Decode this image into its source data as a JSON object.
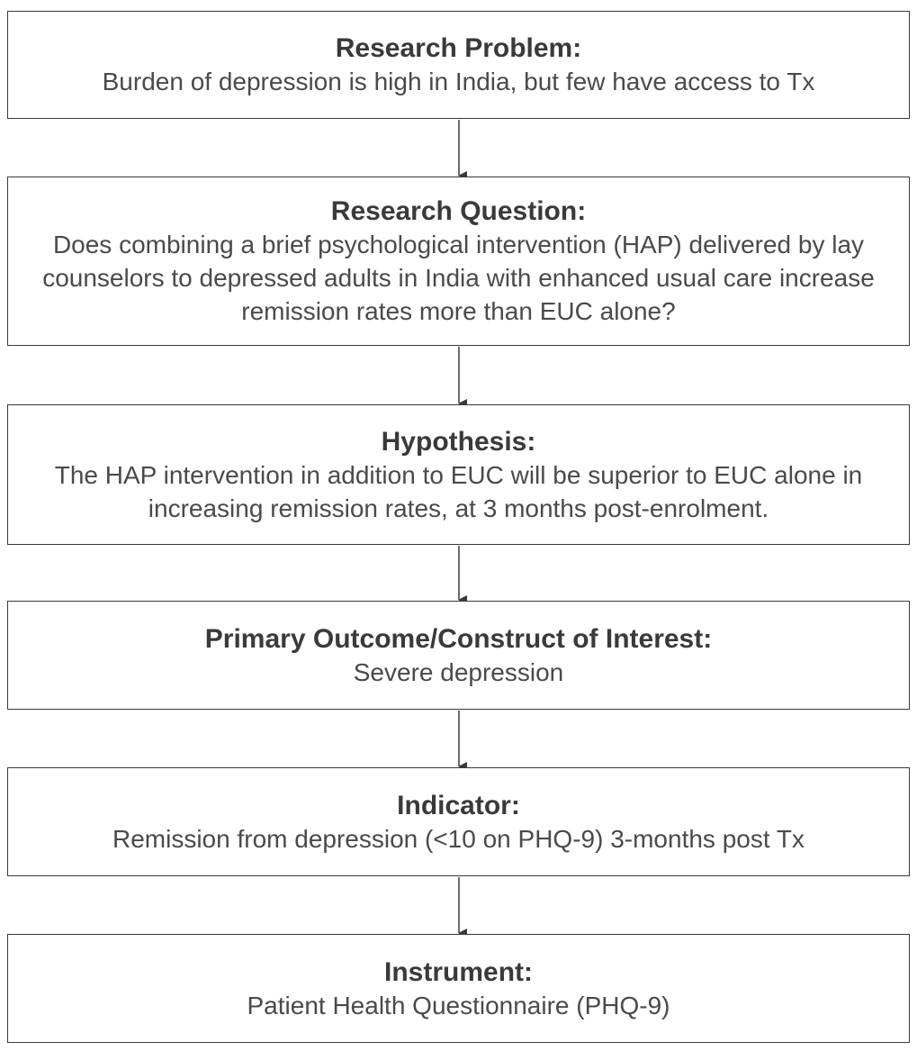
{
  "flowchart": {
    "steps": [
      {
        "title": "Research Problem:",
        "body": "Burden of depression is high in India, but few have access to Tx"
      },
      {
        "title": "Research Question:",
        "body": "Does combining a brief psychological intervention (HAP) delivered by lay counselors to depressed adults in India with enhanced usual care increase remission rates more than EUC alone?"
      },
      {
        "title": "Hypothesis:",
        "body": "The HAP intervention in addition to EUC will be superior to EUC alone in increasing remission rates, at 3 months post-enrolment."
      },
      {
        "title": "Primary Outcome/Construct of Interest:",
        "body": "Severe depression"
      },
      {
        "title": "Indicator:",
        "body": "Remission from depression (<10 on PHQ-9) 3-months post Tx"
      },
      {
        "title": "Instrument:",
        "body": "Patient Health Questionnaire (PHQ-9)"
      }
    ]
  },
  "colors": {
    "border": "#3a3a3a",
    "text": "#3a3a3a",
    "background": "#ffffff"
  }
}
